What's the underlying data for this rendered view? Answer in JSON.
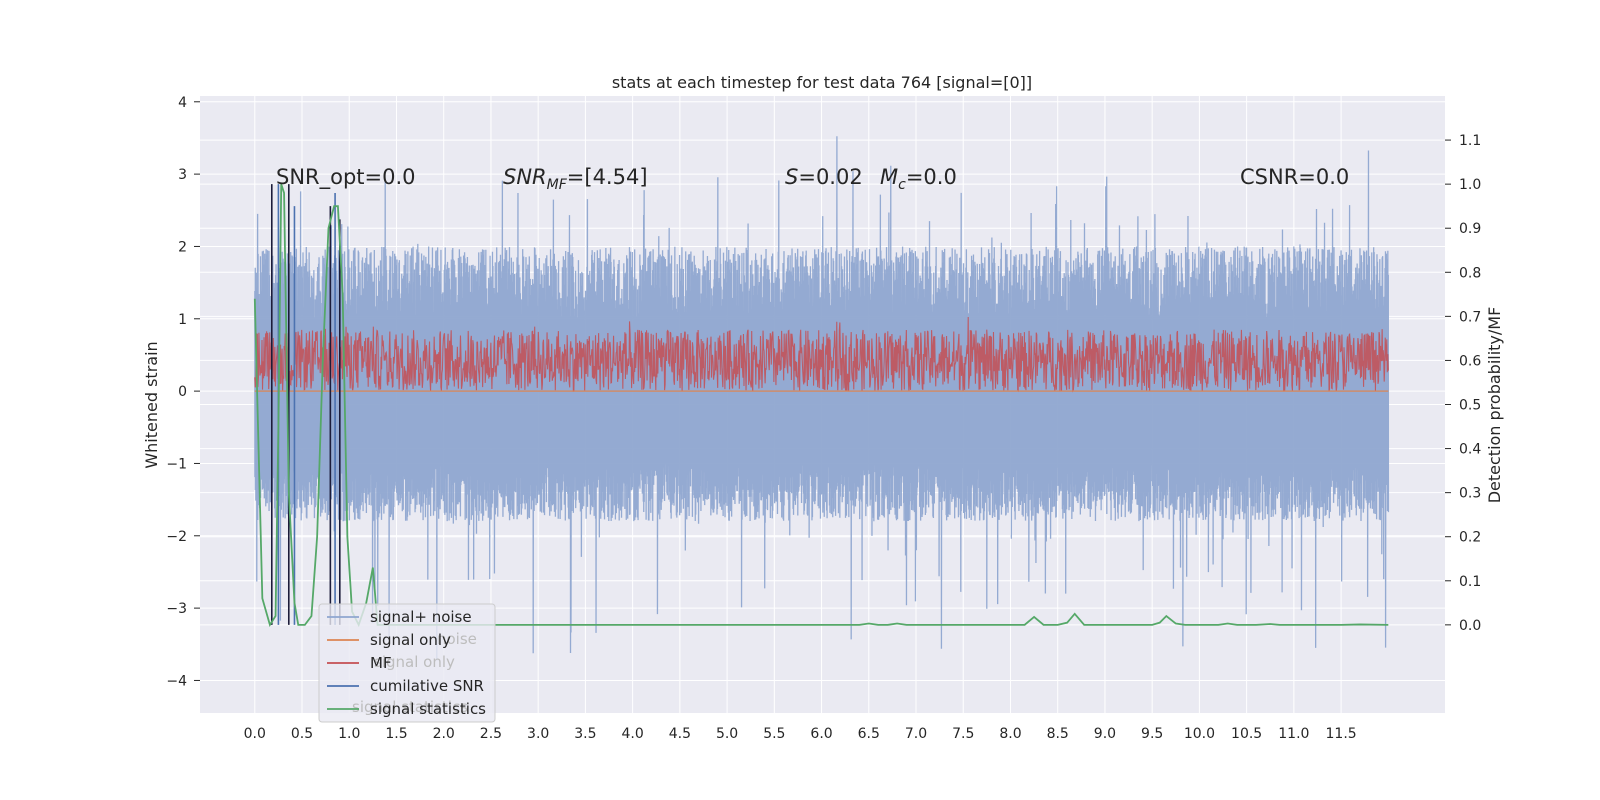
{
  "chart_data": {
    "type": "line",
    "title": "stats at each timestep for test data 764 [signal=[0]]",
    "xlabel": "",
    "ylabel": "Whitened strain",
    "ylabel_right": "Detection probability/MF",
    "xlim": [
      -0.58,
      12.6
    ],
    "ylim": [
      -4.45,
      4.08
    ],
    "ylim_right": [
      -0.2,
      1.2
    ],
    "x_ticks": [
      "0.0",
      "0.5",
      "1.0",
      "1.5",
      "2.0",
      "2.5",
      "3.0",
      "3.5",
      "4.0",
      "4.5",
      "5.0",
      "5.5",
      "6.0",
      "6.5",
      "7.0",
      "7.5",
      "8.0",
      "8.5",
      "9.0",
      "9.5",
      "10.0",
      "10.5",
      "11.0",
      "11.5"
    ],
    "y_ticks": [
      "4",
      "3",
      "2",
      "1",
      "0",
      "−1",
      "−2",
      "−3",
      "−4"
    ],
    "y_ticks_right": [
      "1.1",
      "1.0",
      "0.9",
      "0.8",
      "0.7",
      "0.6",
      "0.5",
      "0.4",
      "0.3",
      "0.2",
      "0.1",
      "0.0"
    ],
    "grid": true,
    "legend_position": "lower-left",
    "legend_ghost_labels": [
      "noise",
      "signal only",
      "signal statistics"
    ],
    "annotations": {
      "snr_opt": "SNR_opt=0.0",
      "snr_mf_main": "SNR",
      "snr_mf_sub": "MF",
      "snr_mf_value": "=[4.54]",
      "s_sym": "S",
      "s_value": "=0.02",
      "mc_sym": "M",
      "mc_sub": "c",
      "mc_value": "=0.0",
      "csnr": "CSNR=0.0"
    },
    "series": [
      {
        "name": "signal+ noise",
        "color": "#8fa6d0",
        "axis": "left",
        "kind": "noise",
        "x_range": [
          0.0,
          12.0
        ],
        "envelope_upper_typical": [
          1.0,
          2.0
        ],
        "envelope_lower_typical": [
          -1.8,
          -1.0
        ],
        "peak_max": 3.65,
        "peak_min": -4.05
      },
      {
        "name": "signal only",
        "color": "#dd8452",
        "axis": "left",
        "kind": "flat",
        "value": 0.0
      },
      {
        "name": "MF",
        "color": "#c44e52",
        "axis": "right",
        "kind": "noise",
        "x_range": [
          0.0,
          12.0
        ],
        "band": [
          0.53,
          0.67
        ]
      },
      {
        "name": "cumilative SNR",
        "color": "#4c72b0",
        "axis": "right",
        "kind": "spikes",
        "x": [
          0.18,
          0.25,
          0.36,
          0.42,
          0.8,
          0.85,
          0.9
        ],
        "y": [
          1.0,
          1.0,
          1.0,
          0.95,
          0.95,
          0.98,
          0.92
        ]
      },
      {
        "name": "signal statistics",
        "color": "#55a868",
        "axis": "right",
        "kind": "line",
        "x": [
          0.0,
          0.08,
          0.16,
          0.22,
          0.25,
          0.28,
          0.31,
          0.36,
          0.42,
          0.46,
          0.53,
          0.6,
          0.66,
          0.72,
          0.78,
          0.84,
          0.88,
          0.93,
          0.98,
          1.03,
          1.1,
          1.18,
          1.25,
          1.3,
          1.4,
          2.0,
          3.0,
          4.0,
          5.0,
          6.0,
          6.4,
          6.5,
          6.6,
          6.7,
          6.8,
          6.9,
          7.0,
          8.0,
          8.15,
          8.25,
          8.35,
          8.5,
          8.6,
          8.68,
          8.78,
          9.0,
          9.5,
          9.58,
          9.65,
          9.75,
          9.85,
          10.0,
          10.2,
          10.3,
          10.4,
          10.6,
          10.75,
          10.85,
          11.0,
          11.5,
          11.7,
          12.0
        ],
        "y": [
          0.74,
          0.06,
          0.0,
          0.02,
          0.45,
          1.0,
          0.98,
          0.3,
          0.05,
          0.0,
          0.0,
          0.02,
          0.2,
          0.6,
          0.9,
          0.95,
          0.95,
          0.75,
          0.2,
          0.03,
          0.0,
          0.05,
          0.13,
          0.0,
          0.0,
          0.0,
          0.0,
          0.0,
          0.0,
          0.0,
          0.0,
          0.003,
          0.0,
          0.0,
          0.003,
          0.0,
          0.0,
          0.0,
          0.0,
          0.018,
          0.0,
          0.0,
          0.005,
          0.025,
          0.0,
          0.0,
          0.0,
          0.005,
          0.02,
          0.003,
          0.0,
          0.0,
          0.0,
          0.003,
          0.0,
          0.0,
          0.002,
          0.0,
          0.0,
          0.0,
          0.001,
          0.0
        ]
      }
    ]
  }
}
